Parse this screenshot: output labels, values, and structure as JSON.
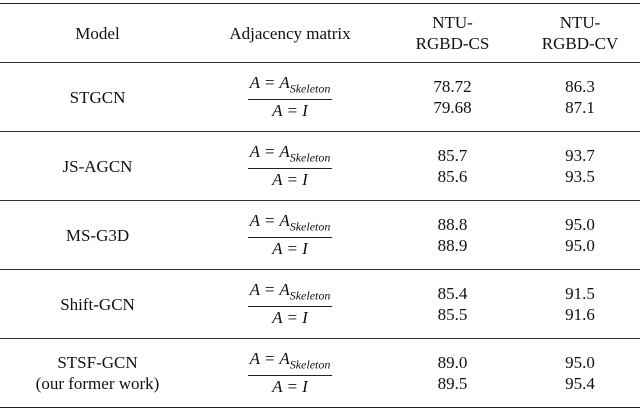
{
  "table": {
    "header": {
      "model": "Model",
      "adjacency": "Adjacency matrix",
      "cs": [
        "NTU-",
        "RGBD-CS"
      ],
      "cv": [
        "NTU-",
        "RGBD-CV"
      ]
    },
    "rows": [
      {
        "model": [
          "STGCN"
        ],
        "adjacency": [
          {
            "text": "A = A",
            "sub": "Skeleton"
          },
          {
            "text": "A = I"
          }
        ],
        "cs": [
          "78.72",
          "79.68"
        ],
        "cv": [
          "86.3",
          "87.1"
        ]
      },
      {
        "model": [
          "JS-AGCN"
        ],
        "adjacency": [
          {
            "text": "A = A",
            "sub": "Skeleton"
          },
          {
            "text": "A = I"
          }
        ],
        "cs": [
          "85.7",
          "85.6"
        ],
        "cv": [
          "93.7",
          "93.5"
        ]
      },
      {
        "model": [
          "MS-G3D"
        ],
        "adjacency": [
          {
            "text": "A = A",
            "sub": "Skeleton"
          },
          {
            "text": "A = I"
          }
        ],
        "cs": [
          "88.8",
          "88.9"
        ],
        "cv": [
          "95.0",
          "95.0"
        ]
      },
      {
        "model": [
          "Shift-GCN"
        ],
        "adjacency": [
          {
            "text": "A = A",
            "sub": "Skeleton"
          },
          {
            "text": "A = I"
          }
        ],
        "cs": [
          "85.4",
          "85.5"
        ],
        "cv": [
          "91.5",
          "91.6"
        ]
      },
      {
        "model": [
          "STSF-GCN",
          "(our former work)"
        ],
        "adjacency": [
          {
            "text": "A = A",
            "sub": "Skeleton"
          },
          {
            "text": "A = I"
          }
        ],
        "cs": [
          "89.0",
          "89.5"
        ],
        "cv": [
          "95.0",
          "95.4"
        ]
      }
    ]
  }
}
